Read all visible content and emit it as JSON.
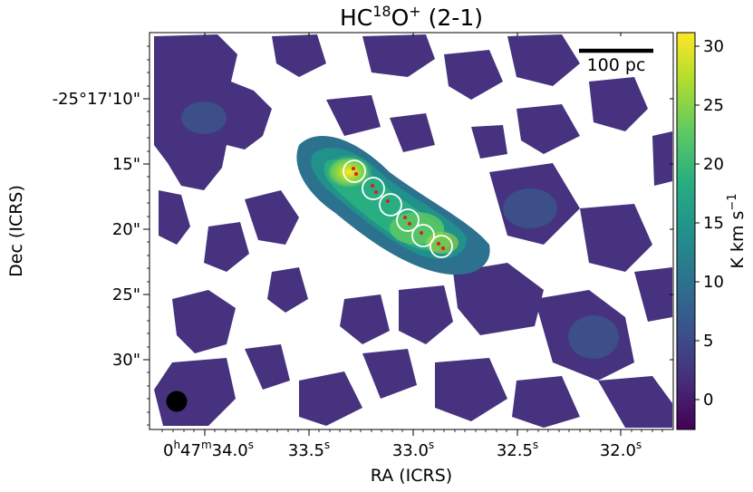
{
  "chart_data": {
    "type": "heatmap",
    "title": {
      "main": "HC",
      "sup1": "18",
      "mid": "O",
      "sup2": "+",
      "tail": " (2-1)"
    },
    "xlabel": "RA (ICRS)",
    "ylabel": "Dec (ICRS)",
    "x_ticks": [
      {
        "pre": "0",
        "h": "h",
        "mid": "47",
        "m": "m",
        "val": "34.0",
        "s": "s"
      },
      {
        "val": "33.5",
        "s": "s"
      },
      {
        "val": "33.0",
        "s": "s"
      },
      {
        "val": "32.5",
        "s": "s"
      },
      {
        "val": "32.0",
        "s": "s"
      }
    ],
    "y_ticks": [
      "-25°17'10\"",
      "15\"",
      "20\"",
      "25\"",
      "30\""
    ],
    "colorbar": {
      "label": "K km s",
      "label_sup": "−1",
      "min": -2.5,
      "max": 31,
      "ticks": [
        "0",
        "5",
        "10",
        "15",
        "20",
        "25",
        "30"
      ],
      "colormap": [
        "#440154",
        "#472d7b",
        "#3b528b",
        "#2c728e",
        "#21918c",
        "#28ae80",
        "#5ec962",
        "#addc30",
        "#fde725"
      ]
    },
    "scale_bar_label": "100 pc",
    "beam": "circle",
    "apertures": 6,
    "filament": "diagonal bright ridge from upper-left to centre-right, peak ~31 K km/s near Dec 15\""
  }
}
